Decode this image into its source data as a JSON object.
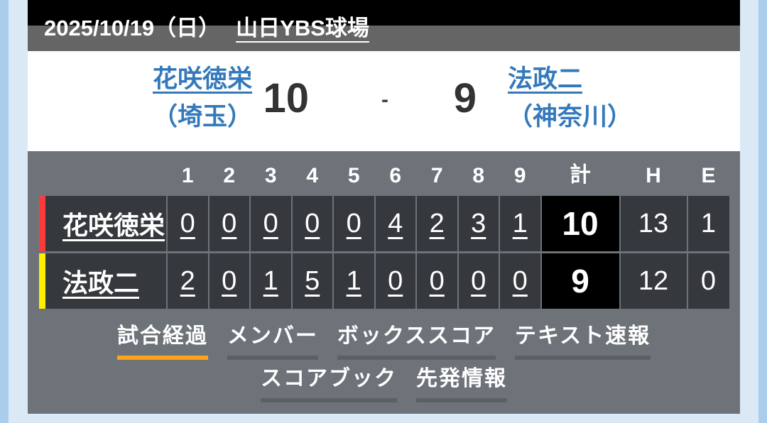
{
  "colors": {
    "link_blue": "#3379bb",
    "score_text": "#333333",
    "accent_home": "#fb3b3b",
    "accent_away": "#ffee00",
    "tab_active": "#ffa318",
    "tab_inactive": "#5b6065",
    "board_bg": "#6e7379",
    "cell_bg": "#35383c",
    "total_bg": "#000000",
    "header_top": "#000000",
    "header_bottom": "#656565",
    "frame_outer": "#a9cdea",
    "frame_inner": "#dbe9f6"
  },
  "header": {
    "date": "2025/10/19（日）",
    "venue": "山日YBS球場"
  },
  "matchup": {
    "home": {
      "name": "花咲徳栄",
      "prefecture": "（埼玉）",
      "score": "10"
    },
    "separator": "-",
    "away": {
      "name": "法政二",
      "prefecture": "（神奈川）",
      "score": "9"
    }
  },
  "scoreboard": {
    "columns": [
      "1",
      "2",
      "3",
      "4",
      "5",
      "6",
      "7",
      "8",
      "9",
      "計",
      "H",
      "E"
    ],
    "rows": [
      {
        "team": "花咲徳栄",
        "innings": [
          "0",
          "0",
          "0",
          "0",
          "0",
          "4",
          "2",
          "3",
          "1"
        ],
        "total": "10",
        "hits": "13",
        "errors": "1"
      },
      {
        "team": "法政二",
        "innings": [
          "2",
          "0",
          "1",
          "5",
          "1",
          "0",
          "0",
          "0",
          "0"
        ],
        "total": "9",
        "hits": "12",
        "errors": "0"
      }
    ]
  },
  "tabs": {
    "row1": [
      {
        "label": "試合経過",
        "state": "active"
      },
      {
        "label": "メンバー",
        "state": ""
      },
      {
        "label": "ボックススコア",
        "state": ""
      },
      {
        "label": "テキスト速報",
        "state": ""
      }
    ],
    "row2": [
      {
        "label": "スコアブック",
        "state": ""
      },
      {
        "label": "先発情報",
        "state": ""
      }
    ]
  }
}
